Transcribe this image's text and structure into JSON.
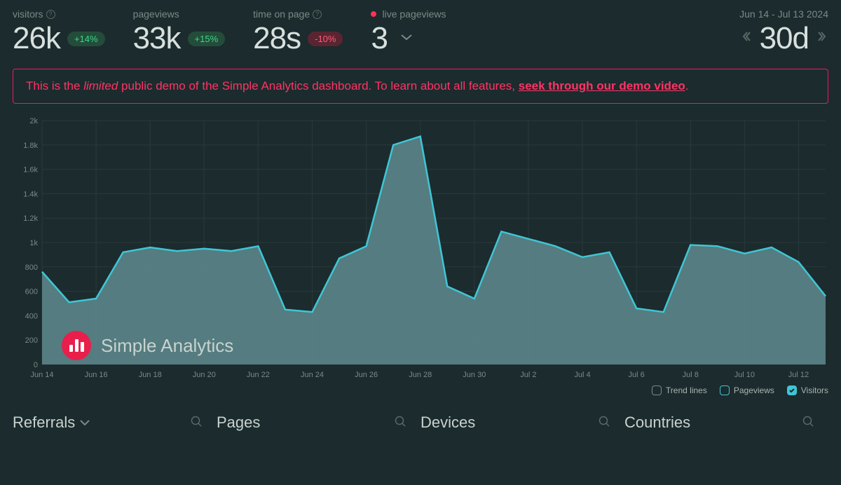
{
  "metrics": {
    "visitors": {
      "label": "visitors",
      "value": "26k",
      "delta": "+14%",
      "delta_type": "green",
      "has_help": true
    },
    "pageviews": {
      "label": "pageviews",
      "value": "33k",
      "delta": "+15%",
      "delta_type": "green",
      "has_help": false
    },
    "time_on_page": {
      "label": "time on page",
      "value": "28s",
      "delta": "-10%",
      "delta_type": "red",
      "has_help": true
    },
    "live_pageviews": {
      "label": "live pageviews",
      "value": "3"
    }
  },
  "date_range": {
    "text": "Jun 14 - Jul 13 2024",
    "period": "30d"
  },
  "banner": {
    "prefix": "This is the ",
    "limited": "limited",
    "middle": " public demo of the Simple Analytics dashboard. To learn about all features, ",
    "link_text": "seek through our demo video",
    "suffix": "."
  },
  "chart": {
    "type": "area",
    "xlim": [
      0,
      29
    ],
    "ylim": [
      0,
      2000
    ],
    "ytick_step": 200,
    "y_ticks": [
      "0",
      "200",
      "400",
      "600",
      "800",
      "1k",
      "1.2k",
      "1.4k",
      "1.6k",
      "1.8k",
      "2k"
    ],
    "x_labels": [
      "Jun 14",
      "Jun 16",
      "Jun 18",
      "Jun 20",
      "Jun 22",
      "Jun 24",
      "Jun 26",
      "Jun 28",
      "Jun 30",
      "Jul 2",
      "Jul 4",
      "Jul 6",
      "Jul 8",
      "Jul 10",
      "Jul 12"
    ],
    "x_label_step": 2,
    "values": [
      760,
      510,
      540,
      920,
      960,
      930,
      950,
      930,
      970,
      450,
      430,
      870,
      970,
      1800,
      1870,
      640,
      540,
      1090,
      1030,
      970,
      880,
      920,
      460,
      430,
      980,
      970,
      910,
      960,
      840,
      560
    ],
    "line_color": "#3ec6d6",
    "fill_color": "#5f8b8f",
    "fill_opacity": 0.85,
    "line_width": 2.5,
    "grid_color": "#2a3a3c",
    "background_color": "#1c2b2d"
  },
  "brand": {
    "name": "Simple Analytics"
  },
  "legend": {
    "items": [
      {
        "label": "Trend lines",
        "state": "empty"
      },
      {
        "label": "Pageviews",
        "state": "outline"
      },
      {
        "label": "Visitors",
        "state": "filled"
      }
    ]
  },
  "tabs": [
    {
      "label": "Referrals",
      "dropdown": true
    },
    {
      "label": "Pages",
      "dropdown": false
    },
    {
      "label": "Devices",
      "dropdown": false
    },
    {
      "label": "Countries",
      "dropdown": false
    }
  ]
}
